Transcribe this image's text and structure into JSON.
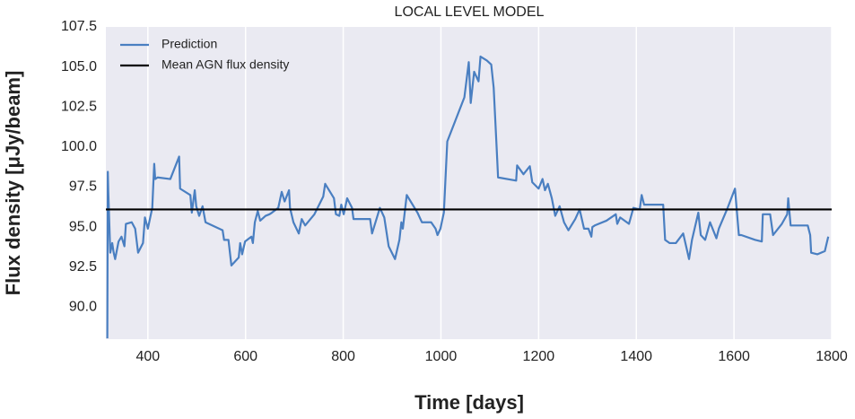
{
  "chart_data": {
    "type": "line",
    "title": "LOCAL LEVEL MODEL",
    "xlabel": "Time [days]",
    "ylabel": "Flux density [μJy/beam]",
    "xlim": [
      314,
      1800
    ],
    "ylim": [
      88,
      107.5
    ],
    "xticks": [
      400,
      600,
      800,
      1000,
      1200,
      1400,
      1600,
      1800
    ],
    "yticks": [
      {
        "value": 90,
        "label": "90.0"
      },
      92.5,
      {
        "value": 95,
        "label": "95.0"
      },
      97.5,
      {
        "value": 100,
        "label": "100.0"
      },
      102.5,
      {
        "value": 105,
        "label": "105.0"
      },
      107.5
    ],
    "grid": "x",
    "legend": "upper left",
    "x": [
      317,
      318,
      319,
      323,
      327,
      330,
      333,
      340,
      346,
      352,
      355,
      367,
      374,
      380,
      390,
      394,
      400,
      409,
      413,
      415,
      420,
      446,
      464,
      466,
      487,
      490,
      496,
      499,
      505,
      512,
      518,
      553,
      556,
      565,
      571,
      586,
      589,
      593,
      599,
      612,
      615,
      619,
      625,
      630,
      641,
      649,
      654,
      667,
      674,
      680,
      689,
      691,
      698,
      709,
      715,
      722,
      741,
      759,
      763,
      781,
      785,
      792,
      796,
      801,
      808,
      818,
      821,
      855,
      859,
      875,
      884,
      893,
      906,
      915,
      919,
      922,
      930,
      952,
      961,
      980,
      989,
      993,
      999,
      1006,
      1013,
      1048,
      1057,
      1061,
      1068,
      1077,
      1081,
      1094,
      1103,
      1108,
      1114,
      1117,
      1154,
      1156,
      1169,
      1182,
      1187,
      1200,
      1208,
      1213,
      1219,
      1227,
      1234,
      1243,
      1252,
      1261,
      1275,
      1284,
      1293,
      1302,
      1308,
      1310,
      1315,
      1339,
      1358,
      1361,
      1367,
      1385,
      1394,
      1407,
      1411,
      1416,
      1455,
      1459,
      1468,
      1481,
      1496,
      1508,
      1514,
      1527,
      1532,
      1541,
      1551,
      1564,
      1569,
      1587,
      1602,
      1610,
      1615,
      1643,
      1657,
      1659,
      1674,
      1680,
      1698,
      1709,
      1711,
      1716,
      1751,
      1756,
      1758,
      1771,
      1786,
      1793
    ],
    "series": [
      {
        "name": "Prediction",
        "color": "#4a7fc1",
        "values": [
          88.05,
          98.45,
          97.2,
          93.4,
          94,
          93.4,
          93,
          94.1,
          94.4,
          93.8,
          95.2,
          95.3,
          94.9,
          93.4,
          94,
          95.6,
          94.9,
          96.2,
          98.95,
          98,
          98.1,
          98,
          99.4,
          97.4,
          97,
          95.9,
          97.3,
          96.3,
          95.7,
          96.3,
          95.3,
          94.8,
          94.2,
          94.2,
          92.6,
          93.1,
          94,
          93.3,
          94.1,
          94.4,
          94,
          95.3,
          96,
          95.4,
          95.7,
          95.8,
          95.9,
          96.2,
          97.2,
          96.6,
          97.3,
          96.2,
          95.3,
          94.6,
          95.5,
          95.1,
          95.8,
          96.9,
          97.7,
          96.8,
          95.8,
          95.7,
          96.4,
          95.8,
          96.8,
          96.2,
          95.5,
          95.5,
          94.6,
          96.2,
          95.6,
          93.8,
          93,
          94.2,
          95.3,
          94.9,
          97,
          95.9,
          95.3,
          95.3,
          94.9,
          94.5,
          94.9,
          95.9,
          100.35,
          103.1,
          105.3,
          102.75,
          104.7,
          104.1,
          105.65,
          105.4,
          105.15,
          103.7,
          100,
          98.1,
          97.9,
          98.85,
          98.3,
          98.8,
          97.8,
          97.4,
          98,
          97.3,
          97.7,
          96.8,
          95.7,
          96.3,
          95.3,
          94.8,
          95.5,
          96.1,
          94.9,
          94.9,
          94.4,
          95,
          95.1,
          95.4,
          95.8,
          95.2,
          95.6,
          95.2,
          96.2,
          96.1,
          97,
          96.4,
          96.4,
          94.2,
          94,
          94,
          94.6,
          93,
          94.2,
          95.9,
          94.5,
          94.2,
          95.3,
          94.3,
          94.9,
          96.2,
          97.4,
          94.5,
          94.5,
          94.2,
          94.1,
          95.8,
          95.8,
          94.5,
          95.2,
          95.8,
          96.8,
          95.1,
          95.1,
          94.5,
          93.4,
          93.3,
          93.5,
          94.4
        ]
      }
    ],
    "mean_line": {
      "name": "Mean AGN flux density",
      "value": 96.1,
      "color": "#000000"
    }
  }
}
